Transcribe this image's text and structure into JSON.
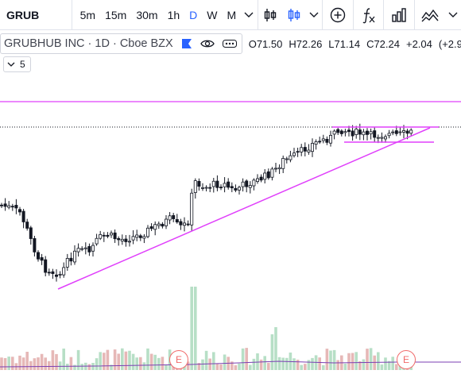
{
  "toolbar": {
    "symbol": "GRUB",
    "intervals": [
      "5m",
      "15m",
      "30m",
      "1h",
      "D",
      "W",
      "M"
    ],
    "active_interval": "D",
    "buttons": [
      "bar-chart-icon",
      "candle-chart-icon",
      "add-compare-icon",
      "indicators-icon",
      "financials-icon",
      "templates-icon"
    ]
  },
  "legend": {
    "title": "GRUBHUB INC · 1D · Cboe BZX",
    "open": "O71.50",
    "high": "H72.26",
    "low": "L71.14",
    "close": "C72.24",
    "change": "+2.04",
    "change_pct": "(+2.9"
  },
  "indicators": {
    "count": "5"
  },
  "earnings": {
    "label": "E"
  },
  "colors": {
    "up": "#26a69a",
    "down": "#ef5350",
    "drawing": "#e040fb",
    "active": "#2962ff",
    "volume_up": "#b7dfc6",
    "volume_down": "#e6b8b7"
  }
}
